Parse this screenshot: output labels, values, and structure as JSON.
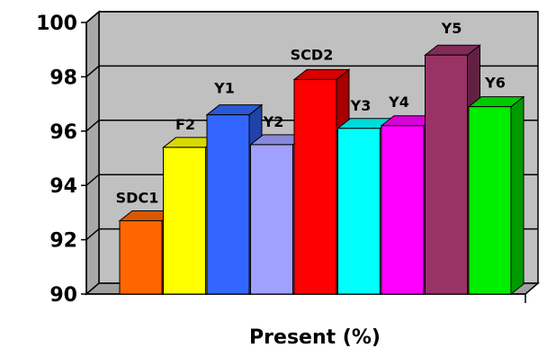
{
  "chart_data": {
    "type": "bar",
    "title": "",
    "xlabel": "Present (%)",
    "ylabel": "",
    "ylim": [
      90,
      100
    ],
    "yticks": [
      90,
      92,
      94,
      96,
      98,
      100
    ],
    "grid": true,
    "legend": "none",
    "categories": [
      "SDC1",
      "F2",
      "Y1",
      "Y2",
      "SCD2",
      "Y3",
      "Y4",
      "Y5",
      "Y6"
    ],
    "values": [
      92.7,
      95.4,
      96.6,
      95.5,
      97.9,
      96.1,
      96.2,
      98.8,
      96.9
    ],
    "colors": [
      "#FF6600",
      "#FFFF00",
      "#3366FF",
      "#A0A0FF",
      "#FF0000",
      "#00FFFF",
      "#FF00FF",
      "#993366",
      "#00EE00"
    ],
    "wall_color": "#C0C0C0",
    "floor_color": "#A0A0A0"
  }
}
